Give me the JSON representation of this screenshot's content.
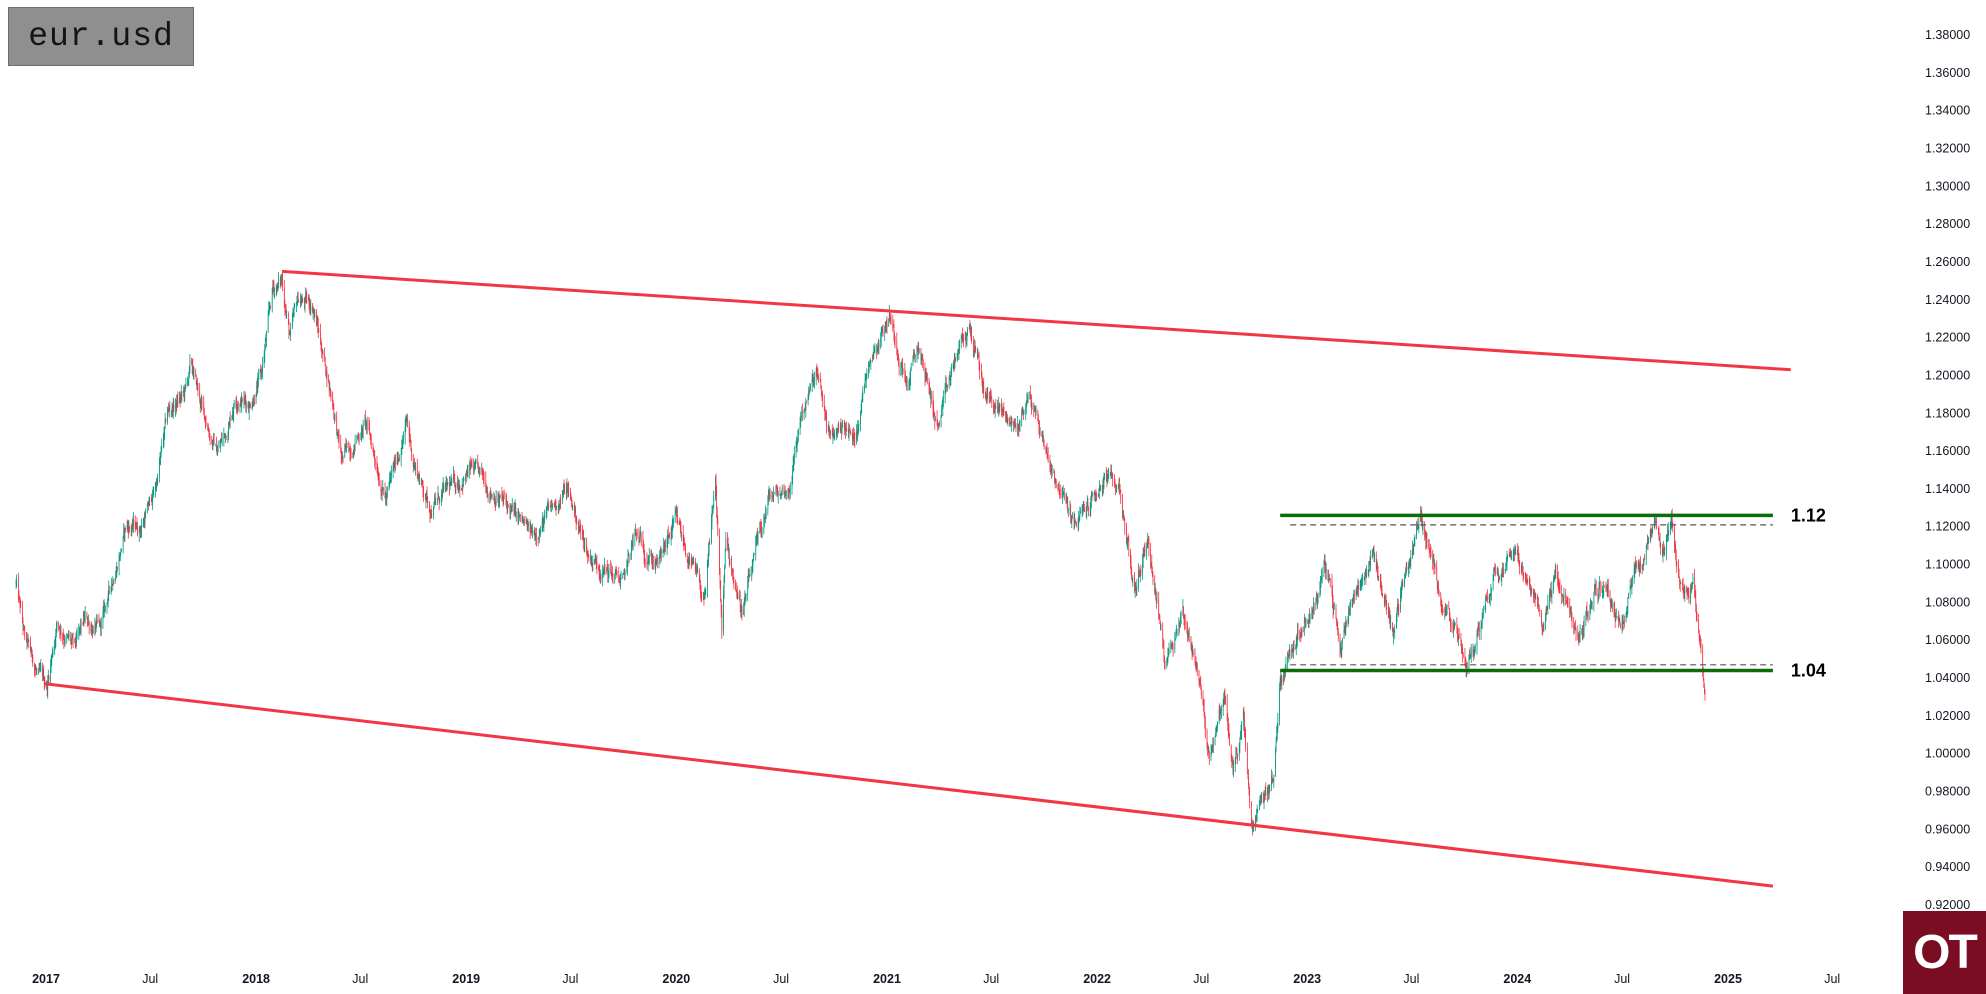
{
  "symbol": "eur.usd",
  "logo": "OT",
  "chart_data": {
    "type": "candlestick",
    "ylim": [
      0.92,
      1.38
    ],
    "y_ticks": [
      "1.38000",
      "1.36000",
      "1.34000",
      "1.32000",
      "1.30000",
      "1.28000",
      "1.26000",
      "1.24000",
      "1.22000",
      "1.20000",
      "1.18000",
      "1.16000",
      "1.14000",
      "1.12000",
      "1.10000",
      "1.08000",
      "1.06000",
      "1.04000",
      "1.02000",
      "1.00000",
      "0.98000",
      "0.96000",
      "0.94000",
      "0.92000"
    ],
    "x_ticks": [
      {
        "label": "2017",
        "date": "2017-01-01",
        "year": true
      },
      {
        "label": "Jul",
        "date": "2017-07-01",
        "year": false
      },
      {
        "label": "2018",
        "date": "2018-01-01",
        "year": true
      },
      {
        "label": "Jul",
        "date": "2018-07-01",
        "year": false
      },
      {
        "label": "2019",
        "date": "2019-01-01",
        "year": true
      },
      {
        "label": "Jul",
        "date": "2019-07-01",
        "year": false
      },
      {
        "label": "2020",
        "date": "2020-01-01",
        "year": true
      },
      {
        "label": "Jul",
        "date": "2020-07-01",
        "year": false
      },
      {
        "label": "2021",
        "date": "2021-01-01",
        "year": true
      },
      {
        "label": "Jul",
        "date": "2021-07-01",
        "year": false
      },
      {
        "label": "2022",
        "date": "2022-01-01",
        "year": true
      },
      {
        "label": "Jul",
        "date": "2022-07-01",
        "year": false
      },
      {
        "label": "2023",
        "date": "2023-01-01",
        "year": true
      },
      {
        "label": "Jul",
        "date": "2023-07-01",
        "year": false
      },
      {
        "label": "2024",
        "date": "2024-01-01",
        "year": true
      },
      {
        "label": "Jul",
        "date": "2024-07-01",
        "year": false
      },
      {
        "label": "2025",
        "date": "2025-01-01",
        "year": true
      },
      {
        "label": "Jul",
        "date": "2025-07-01",
        "year": false
      }
    ],
    "price_path": [
      [
        "2016-11-10",
        1.09
      ],
      [
        "2016-11-25",
        1.06
      ],
      [
        "2016-12-20",
        1.04
      ],
      [
        "2017-01-03",
        1.036
      ],
      [
        "2017-01-20",
        1.07
      ],
      [
        "2017-02-20",
        1.055
      ],
      [
        "2017-03-10",
        1.07
      ],
      [
        "2017-04-05",
        1.065
      ],
      [
        "2017-04-25",
        1.09
      ],
      [
        "2017-05-20",
        1.12
      ],
      [
        "2017-06-15",
        1.12
      ],
      [
        "2017-07-10",
        1.14
      ],
      [
        "2017-08-01",
        1.18
      ],
      [
        "2017-08-30",
        1.19
      ],
      [
        "2017-09-10",
        1.205
      ],
      [
        "2017-10-01",
        1.18
      ],
      [
        "2017-10-25",
        1.16
      ],
      [
        "2017-11-10",
        1.17
      ],
      [
        "2017-11-27",
        1.19
      ],
      [
        "2017-12-20",
        1.185
      ],
      [
        "2018-01-10",
        1.2
      ],
      [
        "2018-01-30",
        1.245
      ],
      [
        "2018-02-15",
        1.25
      ],
      [
        "2018-03-01",
        1.22
      ],
      [
        "2018-03-15",
        1.24
      ],
      [
        "2018-04-10",
        1.237
      ],
      [
        "2018-04-25",
        1.215
      ],
      [
        "2018-05-15",
        1.185
      ],
      [
        "2018-05-29",
        1.155
      ],
      [
        "2018-06-20",
        1.165
      ],
      [
        "2018-07-10",
        1.175
      ],
      [
        "2018-08-15",
        1.135
      ],
      [
        "2018-09-20",
        1.175
      ],
      [
        "2018-10-01",
        1.155
      ],
      [
        "2018-10-31",
        1.13
      ],
      [
        "2018-11-15",
        1.135
      ],
      [
        "2019-01-10",
        1.15
      ],
      [
        "2019-03-01",
        1.135
      ],
      [
        "2019-04-25",
        1.115
      ],
      [
        "2019-06-25",
        1.14
      ],
      [
        "2019-08-01",
        1.105
      ],
      [
        "2019-10-01",
        1.09
      ],
      [
        "2019-10-20",
        1.115
      ],
      [
        "2019-12-01",
        1.1
      ],
      [
        "2019-12-31",
        1.122
      ],
      [
        "2020-02-20",
        1.08
      ],
      [
        "2020-03-09",
        1.145
      ],
      [
        "2020-03-20",
        1.065
      ],
      [
        "2020-03-27",
        1.11
      ],
      [
        "2020-04-25",
        1.075
      ],
      [
        "2020-06-10",
        1.135
      ],
      [
        "2020-07-15",
        1.14
      ],
      [
        "2020-08-05",
        1.18
      ],
      [
        "2020-09-01",
        1.2
      ],
      [
        "2020-09-25",
        1.165
      ],
      [
        "2020-10-15",
        1.175
      ],
      [
        "2020-11-05",
        1.165
      ],
      [
        "2020-12-01",
        1.21
      ],
      [
        "2021-01-06",
        1.232
      ],
      [
        "2021-02-05",
        1.195
      ],
      [
        "2021-02-25",
        1.215
      ],
      [
        "2021-03-31",
        1.172
      ],
      [
        "2021-05-01",
        1.21
      ],
      [
        "2021-05-25",
        1.225
      ],
      [
        "2021-06-20",
        1.19
      ],
      [
        "2021-08-15",
        1.172
      ],
      [
        "2021-09-05",
        1.19
      ],
      [
        "2021-10-10",
        1.155
      ],
      [
        "2021-11-24",
        1.12
      ],
      [
        "2022-01-15",
        1.145
      ],
      [
        "2022-02-10",
        1.14
      ],
      [
        "2022-03-07",
        1.085
      ],
      [
        "2022-03-30",
        1.115
      ],
      [
        "2022-04-28",
        1.05
      ],
      [
        "2022-05-30",
        1.075
      ],
      [
        "2022-06-25",
        1.045
      ],
      [
        "2022-07-14",
        1.0
      ],
      [
        "2022-08-10",
        1.03
      ],
      [
        "2022-08-25",
        0.99
      ],
      [
        "2022-09-12",
        1.017
      ],
      [
        "2022-09-28",
        0.955
      ],
      [
        "2022-10-10",
        0.97
      ],
      [
        "2022-11-05",
        0.99
      ],
      [
        "2022-11-15",
        1.04
      ],
      [
        "2022-12-15",
        1.065
      ],
      [
        "2023-01-15",
        1.08
      ],
      [
        "2023-02-01",
        1.1
      ],
      [
        "2023-03-01",
        1.055
      ],
      [
        "2023-03-15",
        1.08
      ],
      [
        "2023-04-26",
        1.105
      ],
      [
        "2023-05-31",
        1.065
      ],
      [
        "2023-06-20",
        1.095
      ],
      [
        "2023-07-18",
        1.125
      ],
      [
        "2023-08-15",
        1.09
      ],
      [
        "2023-09-10",
        1.07
      ],
      [
        "2023-10-03",
        1.045
      ],
      [
        "2023-10-20",
        1.06
      ],
      [
        "2023-11-20",
        1.095
      ],
      [
        "2023-12-28",
        1.112
      ],
      [
        "2024-01-15",
        1.09
      ],
      [
        "2024-02-14",
        1.07
      ],
      [
        "2024-03-08",
        1.095
      ],
      [
        "2024-04-16",
        1.06
      ],
      [
        "2024-05-15",
        1.085
      ],
      [
        "2024-06-06",
        1.09
      ],
      [
        "2024-06-26",
        1.065
      ],
      [
        "2024-07-17",
        1.095
      ],
      [
        "2024-08-05",
        1.1
      ],
      [
        "2024-08-26",
        1.12
      ],
      [
        "2024-09-10",
        1.1
      ],
      [
        "2024-09-25",
        1.12
      ],
      [
        "2024-10-10",
        1.09
      ],
      [
        "2024-10-25",
        1.08
      ],
      [
        "2024-11-01",
        1.09
      ],
      [
        "2024-11-10",
        1.07
      ],
      [
        "2024-11-22",
        1.035
      ]
    ],
    "channel_upper": {
      "start": [
        "2018-02-15",
        1.255
      ],
      "end": [
        "2025-04-20",
        1.203
      ],
      "color": "#f23645"
    },
    "channel_lower": {
      "start": [
        "2016-12-30",
        1.037
      ],
      "end": [
        "2025-03-20",
        0.93
      ],
      "color": "#f23645"
    },
    "range_levels": [
      {
        "label": "1.12",
        "solid": 1.126,
        "dashed": 1.121,
        "start": "2022-11-15",
        "end": "2025-03-20",
        "color": "#0b6e0b"
      },
      {
        "label": "1.04",
        "solid": 1.044,
        "dashed": 1.047,
        "start": "2022-11-15",
        "end": "2025-03-20",
        "color": "#0b6e0b"
      }
    ],
    "candle_colors": {
      "up": "#089981",
      "down": "#f23645"
    }
  }
}
